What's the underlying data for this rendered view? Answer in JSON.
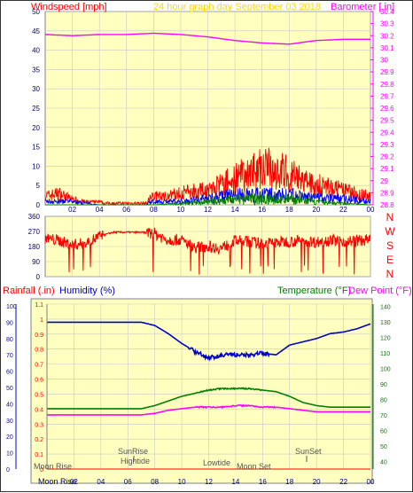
{
  "colors": {
    "plot_bg": "#ffffc0",
    "wind_gust": "#ff0000",
    "wind_avg": "#0000ff",
    "wind_dir_green": "#008000",
    "barometer": "#ff00ff",
    "direction": "#ff0000",
    "humidity": "#0000cc",
    "temperature": "#008000",
    "dewpoint": "#ff00ff",
    "rainfall": "#ff0000",
    "title": "#ffd800",
    "axis_text": "#000080"
  },
  "chart_data": [
    {
      "type": "line",
      "title": "24 hour graph day   September 03 2018",
      "ylabel_left": "Windspeed [mph]",
      "ylabel_right": "Barometer [.in]",
      "ylim_left": [
        0,
        50
      ],
      "left_ticks": [
        "0",
        "5",
        "10",
        "15",
        "20",
        "25",
        "30",
        "35",
        "40",
        "45",
        "50"
      ],
      "ylim_right": [
        28.8,
        30.4
      ],
      "right_ticks": [
        "28.8",
        "28.9",
        "29",
        "29.1",
        "29.2",
        "29.3",
        "29.4",
        "29.5",
        "29.6",
        "29.7",
        "29.8",
        "29.9",
        "30",
        "30.1",
        "30.2",
        "30.3",
        "30.4"
      ],
      "x_ticks": [
        "02",
        "04",
        "06",
        "08",
        "10",
        "12",
        "14",
        "16",
        "18",
        "20",
        "22",
        "00"
      ],
      "xlim_hours": [
        0,
        24
      ],
      "grid": true,
      "series": [
        {
          "name": "Barometer",
          "axis": "right",
          "x": [
            0,
            2,
            4,
            6,
            8,
            10,
            12,
            14,
            16,
            18,
            20,
            22,
            24
          ],
          "y": [
            30.21,
            30.2,
            30.21,
            30.21,
            30.22,
            30.21,
            30.19,
            30.16,
            30.14,
            30.13,
            30.16,
            30.17,
            30.17
          ]
        },
        {
          "name": "Wind gust",
          "axis": "left",
          "x": [
            0,
            1,
            2,
            3,
            4,
            5,
            6,
            7,
            8,
            9,
            10,
            11,
            12,
            13,
            14,
            15,
            16,
            17,
            18,
            19,
            20,
            21,
            22,
            23,
            24
          ],
          "y": [
            3,
            4,
            2,
            1,
            1,
            0,
            1,
            1,
            3,
            3,
            4,
            5,
            5,
            7,
            9,
            11,
            13,
            12,
            11,
            8,
            7,
            6,
            5,
            4,
            3
          ]
        },
        {
          "name": "Wind average",
          "axis": "left",
          "x": [
            0,
            2,
            4,
            6,
            8,
            10,
            12,
            14,
            16,
            18,
            20,
            22,
            24
          ],
          "y": [
            1,
            1,
            0,
            0,
            1,
            1,
            2,
            3,
            3,
            3,
            2,
            2,
            1
          ]
        },
        {
          "name": "Wind low",
          "axis": "left",
          "x": [
            0,
            4,
            8,
            12,
            14,
            16,
            18,
            20,
            24
          ],
          "y": [
            0,
            0,
            0,
            1,
            2,
            2,
            2,
            1,
            0
          ]
        }
      ]
    },
    {
      "type": "line",
      "ylabel_right": "N W S E N",
      "ylim": [
        0,
        360
      ],
      "y_ticks": [
        "0",
        "45",
        "90",
        "135",
        "180",
        "225",
        "270",
        "315",
        "360"
      ],
      "x_ticks": [
        "02",
        "04",
        "06",
        "08",
        "10",
        "12",
        "14",
        "16",
        "18",
        "20",
        "22",
        "00"
      ],
      "series": [
        {
          "name": "Wind direction",
          "x": [
            0,
            1,
            2,
            3,
            4,
            5,
            6,
            7,
            8,
            9,
            10,
            11,
            12,
            13,
            14,
            15,
            16,
            17,
            18,
            19,
            20,
            21,
            22,
            23,
            24
          ],
          "y": [
            230,
            215,
            190,
            200,
            240,
            265,
            265,
            265,
            260,
            220,
            220,
            175,
            180,
            170,
            215,
            210,
            195,
            205,
            210,
            215,
            205,
            220,
            210,
            215,
            220
          ]
        }
      ]
    },
    {
      "type": "line",
      "ylabel_left": "Rainfall (.in)",
      "ylabel_left2": "Humidity (%)",
      "ylabel_right": "Temperature (°F)",
      "ylabel_right2": "Dew Point (°F)",
      "rain_ticks": [
        "0",
        "0.1",
        "0.2",
        "0.3",
        "0.4",
        "0.5",
        "0.6",
        "0.7",
        "0.8",
        "0.9",
        "1",
        "1.1"
      ],
      "humidity_ticks": [
        "0",
        "10",
        "20",
        "30",
        "40",
        "50",
        "60",
        "70",
        "80",
        "90",
        "100"
      ],
      "temp_ticks": [
        "40",
        "50",
        "60",
        "70",
        "80",
        "90",
        "100",
        "110",
        "120",
        "130",
        "140"
      ],
      "ylim_humidity": [
        0,
        100
      ],
      "ylim_temp": [
        35,
        145
      ],
      "x_ticks": [
        "02",
        "04",
        "06",
        "08",
        "10",
        "12",
        "14",
        "16",
        "18",
        "20",
        "22",
        "00"
      ],
      "series": [
        {
          "name": "Humidity",
          "x": [
            0,
            2,
            4,
            6,
            7,
            8,
            9,
            10,
            11,
            12,
            13,
            14,
            15,
            16,
            17,
            18,
            19,
            20,
            21,
            22,
            23,
            24
          ],
          "y": [
            90,
            90,
            90,
            90,
            90,
            88,
            83,
            77,
            72,
            68,
            70,
            70,
            70,
            71,
            70,
            76,
            78,
            80,
            83,
            84,
            86,
            89
          ]
        },
        {
          "name": "Temperature",
          "x": [
            0,
            2,
            4,
            6,
            7,
            8,
            9,
            10,
            11,
            12,
            13,
            14,
            15,
            16,
            17,
            18,
            19,
            20,
            21,
            22,
            23,
            24
          ],
          "y": [
            74,
            74,
            74,
            74,
            74,
            76,
            79,
            82,
            84,
            86,
            87,
            87,
            87,
            86,
            85,
            82,
            78,
            76,
            75,
            75,
            75,
            75
          ]
        },
        {
          "name": "Dew Point",
          "x": [
            0,
            2,
            4,
            6,
            7,
            8,
            9,
            10,
            11,
            12,
            13,
            14,
            15,
            16,
            17,
            18,
            19,
            20,
            21,
            22,
            23,
            24
          ],
          "y": [
            70,
            70,
            70,
            70,
            70,
            71,
            73,
            74,
            75,
            75,
            75,
            76,
            76,
            75,
            75,
            74,
            73,
            72,
            72,
            72,
            72,
            72
          ]
        },
        {
          "name": "Rainfall",
          "x": [
            0,
            24
          ],
          "y": [
            0,
            0
          ]
        }
      ],
      "annotations": {
        "sunrise": "SunRise",
        "sunset": "SunSet",
        "hightide": "Hightide",
        "lowtide": "Lowtide",
        "moonrise_top": "Moon Rise",
        "moonrise_bottom": "Moon Rise",
        "moonset": "Moon Set"
      }
    }
  ]
}
